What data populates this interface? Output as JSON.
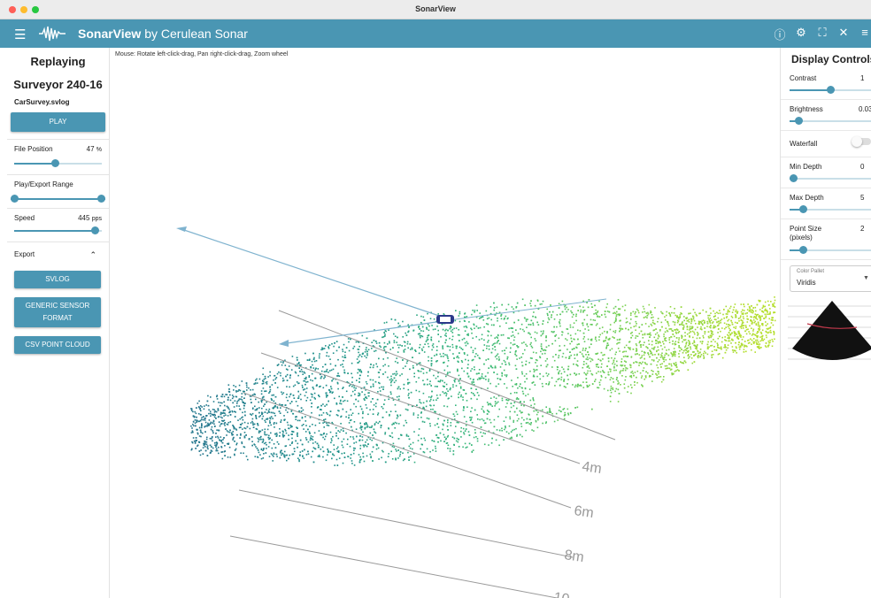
{
  "window": {
    "title": "SonarView",
    "traffic_colors": [
      "#ff5f57",
      "#febc2e",
      "#28c840"
    ]
  },
  "appbar": {
    "brand_bold": "SonarView",
    "brand_rest": " by Cerulean Sonar",
    "menu_icon": "menu-icon",
    "tools": [
      "info-icon",
      "gear-icon",
      "fullscreen-icon",
      "close-icon",
      "list-icon"
    ],
    "color": "#4a96b3"
  },
  "left": {
    "replaying": "Replaying",
    "title": "Surveyor 240-16",
    "file": "CarSurvey.svlog",
    "play_label": "PLAY",
    "file_position": {
      "label": "File Position",
      "value": "47",
      "unit": "%",
      "fraction": 0.47
    },
    "range": {
      "label": "Play/Export Range",
      "start": 0.0,
      "end": 1.0
    },
    "speed": {
      "label": "Speed",
      "value": "445",
      "unit": "pps",
      "fraction": 0.97
    },
    "export": {
      "label": "Export",
      "buttons": [
        "SVLOG",
        "GENERIC SENSOR FORMAT",
        "CSV POINT CLOUD"
      ]
    }
  },
  "viewport": {
    "hint": "Mouse: Rotate left-click-drag, Pan right-click-drag, Zoom wheel",
    "depth_labels": [
      "4m",
      "6m",
      "8m",
      "10"
    ]
  },
  "right": {
    "title": "Display Controls",
    "contrast": {
      "label": "Contrast",
      "value": "1",
      "fraction": 0.22
    },
    "brightness": {
      "label": "Brightness",
      "value": "0.03",
      "fraction": 0.03
    },
    "waterfall": {
      "label": "Waterfall",
      "on": false
    },
    "min_depth": {
      "label": "Min Depth",
      "value": "0",
      "fraction": 0.0
    },
    "max_depth": {
      "label": "Max Depth",
      "value": "5",
      "fraction": 0.06
    },
    "point_size": {
      "label": "Point Size (pixels)",
      "value": "2",
      "fraction": 0.06
    },
    "color_pallet": {
      "caption": "Color Pallet",
      "value": "Viridis"
    }
  }
}
